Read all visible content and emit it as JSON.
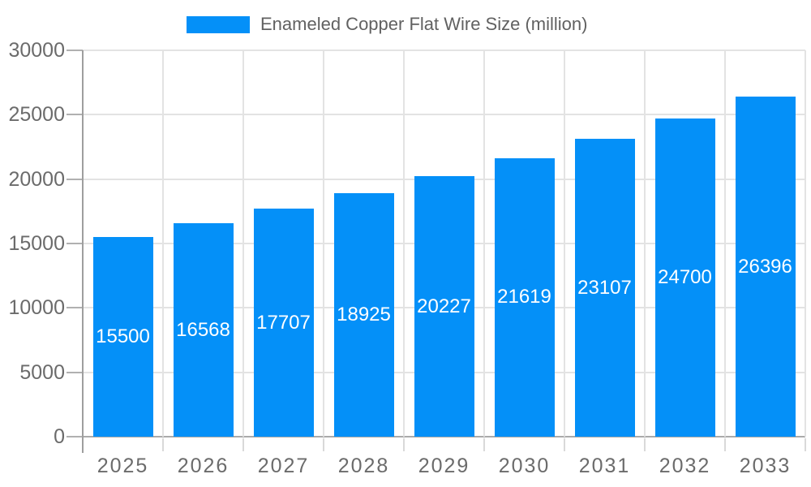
{
  "legend": {
    "label": "Enameled Copper Flat Wire Size (million)"
  },
  "chart_data": {
    "type": "bar",
    "title": "Enameled Copper Flat Wire Size (million)",
    "categories": [
      "2025",
      "2026",
      "2027",
      "2028",
      "2029",
      "2030",
      "2031",
      "2032",
      "2033"
    ],
    "values": [
      15500,
      16568,
      17707,
      18925,
      20227,
      21619,
      23107,
      24700,
      26396
    ],
    "series": [
      {
        "name": "Enameled Copper Flat Wire Size (million)",
        "values": [
          15500,
          16568,
          17707,
          18925,
          20227,
          21619,
          23107,
          24700,
          26396
        ]
      }
    ],
    "xlabel": "",
    "ylabel": "",
    "ylim": [
      0,
      30000
    ],
    "yticks": [
      0,
      5000,
      10000,
      15000,
      20000,
      25000,
      30000
    ],
    "grid": "horizontal and vertical gridlines",
    "legend_position": "top",
    "value_labels": "white, centered inside bars"
  },
  "colors": {
    "bar": "#0490f8",
    "grid": "#e3e3e3",
    "axis_line": "#aaaaaa",
    "y_axis_line": "#9e9e9e",
    "tick": "#b0b0b0",
    "x_tick": "#d9d9d9",
    "axis_label": "#6b6b6b",
    "legend_label": "#616161",
    "value_label": "#ffffff",
    "background": "#ffffff"
  }
}
